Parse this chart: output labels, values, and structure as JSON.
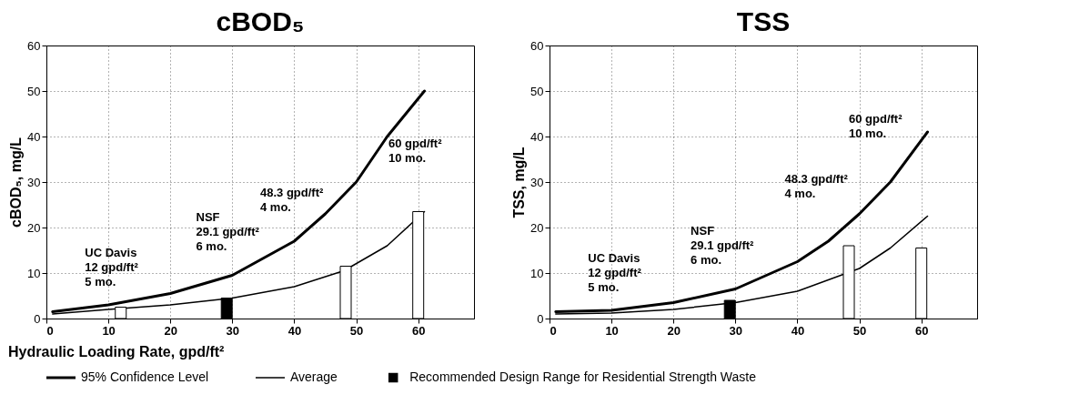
{
  "chart_data": [
    {
      "type": "line",
      "title": "cBOD₅",
      "ylabel": "cBOD₅, mg/L",
      "xlabel": "Hydraulic Loading Rate, gpd/ft²",
      "xlim": [
        0,
        69
      ],
      "ylim": [
        0,
        60
      ],
      "xticks": [
        0,
        10,
        20,
        30,
        40,
        50,
        60
      ],
      "yticks": [
        0,
        10,
        20,
        30,
        40,
        50,
        60
      ],
      "grid": true,
      "legend": "bottom",
      "series": [
        {
          "name": "95% Confidence Level",
          "color": "#000000",
          "x": [
            1,
            10,
            20,
            30,
            40,
            45,
            50,
            55,
            61
          ],
          "values": [
            1.5,
            3,
            5.5,
            9.5,
            17,
            23,
            30,
            40,
            50
          ]
        },
        {
          "name": "Average",
          "color": "#000000",
          "x": [
            1,
            10,
            20,
            30,
            40,
            48,
            55,
            61
          ],
          "values": [
            1,
            2,
            3,
            4.5,
            7,
            10.5,
            16,
            23.5
          ]
        },
        {
          "name": "Recommended Design Range for Residential Strength Waste",
          "type": "bar",
          "color": "#000000",
          "x": [
            29.1
          ],
          "values": [
            4.5
          ]
        },
        {
          "type": "bar",
          "color": "#ffffff",
          "x": [
            12,
            48.3,
            60
          ],
          "values": [
            2.5,
            11.5,
            23.5
          ]
        }
      ],
      "annotations": [
        "UC Davis\n12 gpd/ft²\n5 mo.",
        "NSF\n29.1 gpd/ft²\n6 mo.",
        "48.3 gpd/ft²\n4 mo.",
        "60 gpd/ft²\n10 mo."
      ]
    },
    {
      "type": "line",
      "title": "TSS",
      "ylabel": "TSS, mg/L",
      "xlim": [
        0,
        69
      ],
      "ylim": [
        0,
        60
      ],
      "xticks": [
        0,
        10,
        20,
        30,
        40,
        50,
        60
      ],
      "yticks": [
        0,
        10,
        20,
        30,
        40,
        50,
        60
      ],
      "grid": true,
      "series": [
        {
          "color": "#000000",
          "x": [
            1,
            10,
            20,
            30,
            40,
            45,
            50,
            55,
            61
          ],
          "values": [
            1.5,
            1.8,
            3.5,
            6.5,
            12.5,
            17,
            23,
            30,
            41
          ]
        },
        {
          "color": "#000000",
          "x": [
            1,
            10,
            20,
            30,
            40,
            50,
            55,
            61
          ],
          "values": [
            1,
            1.2,
            2,
            3.5,
            6,
            11,
            15.5,
            22.5
          ]
        },
        {
          "type": "bar",
          "color": "#000000",
          "x": [
            29.1
          ],
          "values": [
            4
          ]
        },
        {
          "type": "bar",
          "color": "#ffffff",
          "x": [
            48.3,
            60
          ],
          "values": [
            16,
            15.5
          ]
        }
      ],
      "annotations": [
        "UC Davis\n12 gpd/ft²\n5 mo.",
        "NSF\n29.1 gpd/ft²\n6 mo.",
        "48.3 gpd/ft²\n4 mo.",
        "60 gpd/ft²\n10 mo."
      ]
    }
  ]
}
